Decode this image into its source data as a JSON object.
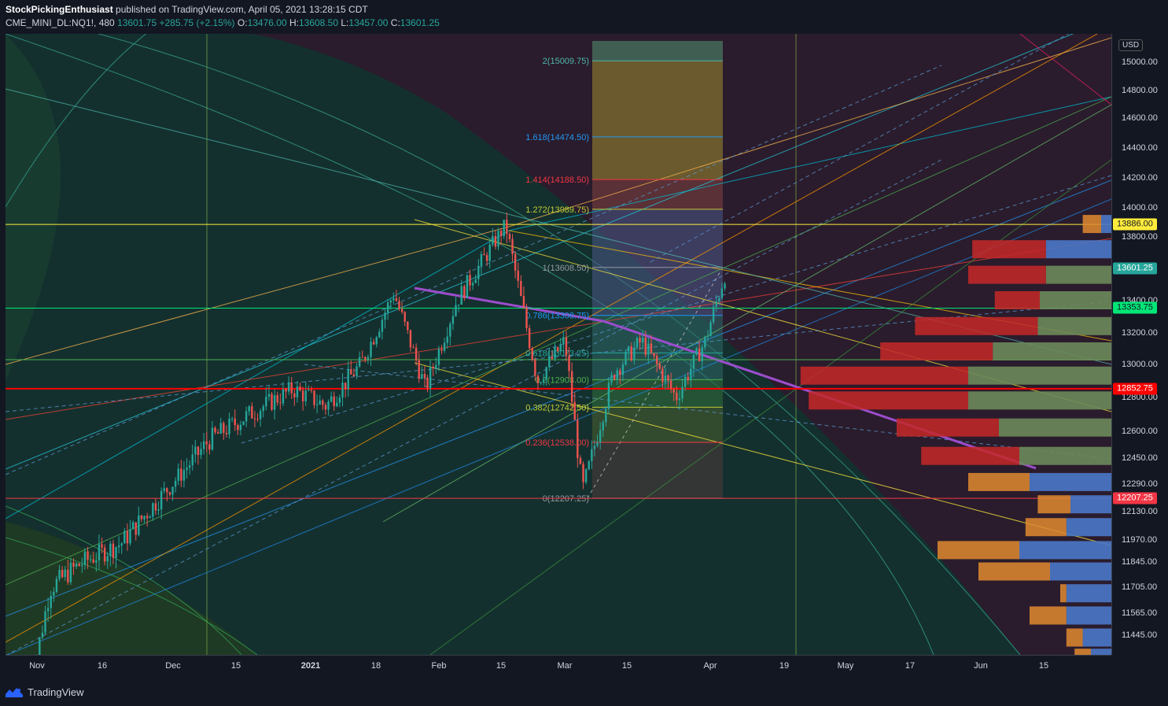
{
  "header": {
    "author": "StockPickingEnthusiast",
    "published": "published on TradingView.com, April 05, 2021 13:28:15 CDT",
    "symbol": "CME_MINI_DL:NQ1!, 480",
    "last": "13601.75",
    "change": "+285.75 (+2.15%)",
    "o_label": "O:",
    "o": "13476.00",
    "h_label": "H:",
    "h": "13608.50",
    "l_label": "L:",
    "l": "13457.00",
    "c_label": "C:",
    "c": "13601.25"
  },
  "currency": "USD",
  "footer": {
    "brand": "TradingView"
  },
  "colors": {
    "background": "#131722",
    "up": "#26a69a",
    "down": "#ef5350",
    "price_label": "#26a69a",
    "yellow_line": "#ffeb3b",
    "red_line": "#ff0000",
    "green_line": "#00e676",
    "poc_red": "#c62828"
  },
  "chart_data": {
    "type": "candlestick",
    "x_tick_labels": [
      "Nov",
      "16",
      "Dec",
      "15",
      "2021",
      "18",
      "Feb",
      "15",
      "Mar",
      "15",
      "Apr",
      "19",
      "May",
      "17",
      "Jun",
      "15"
    ],
    "y_tick_labels": [
      "15000.00",
      "14800.00",
      "14600.00",
      "14400.00",
      "14200.00",
      "14000.00",
      "13800.00",
      "13400.00",
      "13200.00",
      "13000.00",
      "12800.00",
      "12600.00",
      "12450.00",
      "12290.00",
      "12130.00",
      "11970.00",
      "11845.00",
      "11705.00",
      "11565.00",
      "11445.00"
    ],
    "price_labels": [
      {
        "text": "13886.00",
        "price": 13886,
        "bg": "#ffeb3b",
        "fg": "#131722"
      },
      {
        "text": "13601.25",
        "price": 13601.25,
        "bg": "#26a69a",
        "fg": "#ffffff"
      },
      {
        "text": "13353.75",
        "price": 13353.75,
        "bg": "#00e676",
        "fg": "#131722"
      },
      {
        "text": "12852.75",
        "price": 12852.75,
        "bg": "#ff0000",
        "fg": "#ffffff"
      },
      {
        "text": "12207.25",
        "price": 12207.25,
        "bg": "#f23645",
        "fg": "#ffffff"
      }
    ],
    "horizontal_lines": [
      {
        "price": 13886,
        "color": "#ffeb3b"
      },
      {
        "price": 13353.75,
        "color": "#00e676"
      },
      {
        "price": 12852.75,
        "color": "#ff0000"
      },
      {
        "price": 13030,
        "color": "#4caf50"
      },
      {
        "price": 12207.25,
        "color": "#f23645"
      }
    ],
    "fibonacci": [
      {
        "level": "2",
        "price": 15009.75,
        "text": "2(15009.75)",
        "color": "#4db6ac"
      },
      {
        "level": "1.618",
        "price": 14474.5,
        "text": "1.618(14474.50)",
        "color": "#2196f3"
      },
      {
        "level": "1.414",
        "price": 14188.5,
        "text": "1.414(14188.50)",
        "color": "#f23645"
      },
      {
        "level": "1.272",
        "price": 13989.75,
        "text": "1.272(13989.75)",
        "color": "#c0ca33"
      },
      {
        "level": "1",
        "price": 13608.5,
        "text": "1(13608.50)",
        "color": "#9598a1"
      },
      {
        "level": "0.786",
        "price": 13308.75,
        "text": "0.786(13308.75)",
        "color": "#2196f3"
      },
      {
        "level": "0.618",
        "price": 13073.25,
        "text": "0.618(13073.25)",
        "color": "#26a69a"
      },
      {
        "level": "0.5",
        "price": 12908.0,
        "text": "0.5(12908.00)",
        "color": "#4caf50"
      },
      {
        "level": "0.382",
        "price": 12742.5,
        "text": "0.382(12742.50)",
        "color": "#c0ca33"
      },
      {
        "level": "0.236",
        "price": 12538.0,
        "text": "0.236(12538.00)",
        "color": "#f23645"
      },
      {
        "level": "0",
        "price": 12207.25,
        "text": "0(12207.25)",
        "color": "#9598a1"
      }
    ],
    "price_path": [
      {
        "date": "2020-10-30",
        "close": 11100
      },
      {
        "date": "2020-11-04",
        "close": 11700
      },
      {
        "date": "2020-11-09",
        "close": 11800
      },
      {
        "date": "2020-11-12",
        "close": 11850
      },
      {
        "date": "2020-11-20",
        "close": 11950
      },
      {
        "date": "2020-12-01",
        "close": 12300
      },
      {
        "date": "2020-12-09",
        "close": 12550
      },
      {
        "date": "2020-12-18",
        "close": 12700
      },
      {
        "date": "2020-12-28",
        "close": 12850
      },
      {
        "date": "2021-01-05",
        "close": 12750
      },
      {
        "date": "2021-01-14",
        "close": 13000
      },
      {
        "date": "2021-01-22",
        "close": 13450
      },
      {
        "date": "2021-01-29",
        "close": 12850
      },
      {
        "date": "2021-02-05",
        "close": 13400
      },
      {
        "date": "2021-02-12",
        "close": 13700
      },
      {
        "date": "2021-02-16",
        "close": 13880
      },
      {
        "date": "2021-02-23",
        "close": 12900
      },
      {
        "date": "2021-03-01",
        "close": 13150
      },
      {
        "date": "2021-03-05",
        "close": 12250
      },
      {
        "date": "2021-03-12",
        "close": 12950
      },
      {
        "date": "2021-03-18",
        "close": 13150
      },
      {
        "date": "2021-03-25",
        "close": 12800
      },
      {
        "date": "2021-03-31",
        "close": 13150
      },
      {
        "date": "2021-04-02",
        "close": 13350
      },
      {
        "date": "2021-04-05",
        "close": 13601.25
      }
    ],
    "volume_profile": [
      {
        "price": 13886,
        "up": 0.05,
        "down": 0.09
      },
      {
        "price": 13720,
        "up": 0.32,
        "down": 0.36
      },
      {
        "price": 13560,
        "up": 0.32,
        "down": 0.38
      },
      {
        "price": 13400,
        "up": 0.35,
        "down": 0.22
      },
      {
        "price": 13240,
        "up": 0.36,
        "down": 0.6
      },
      {
        "price": 13080,
        "up": 0.58,
        "down": 0.55
      },
      {
        "price": 12930,
        "up": 0.7,
        "down": 0.82
      },
      {
        "price": 12780,
        "up": 0.7,
        "down": 0.78
      },
      {
        "price": 12620,
        "up": 0.55,
        "down": 0.5
      },
      {
        "price": 12460,
        "up": 0.45,
        "down": 0.48
      },
      {
        "price": 12300,
        "up": 0.4,
        "down": 0.3
      },
      {
        "price": 12170,
        "up": 0.2,
        "down": 0.16
      },
      {
        "price": 12040,
        "up": 0.22,
        "down": 0.2
      },
      {
        "price": 11910,
        "up": 0.45,
        "down": 0.4
      },
      {
        "price": 11790,
        "up": 0.3,
        "down": 0.35
      },
      {
        "price": 11670,
        "up": 0.22,
        "down": 0.03
      },
      {
        "price": 11550,
        "up": 0.22,
        "down": 0.18
      },
      {
        "price": 11430,
        "up": 0.14,
        "down": 0.08
      },
      {
        "price": 11320,
        "up": 0.1,
        "down": 0.08
      }
    ]
  }
}
